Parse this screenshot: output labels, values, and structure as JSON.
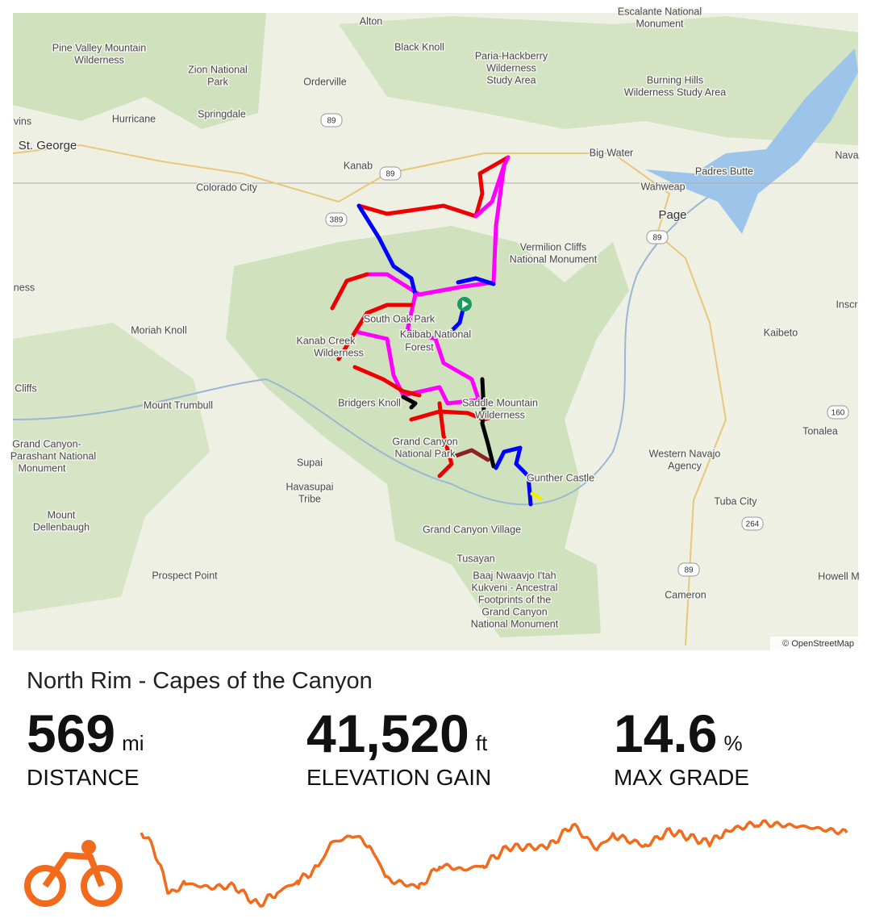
{
  "map": {
    "labels": [
      "Alton",
      "Black Knoll",
      "Pine Valley Mountain",
      "Wilderness",
      "Zion National",
      "Park",
      "Orderville",
      "Paria-Hackberry",
      "Wilderness",
      "Study Area",
      "Escalante National",
      "Monument",
      "Burning Hills",
      "Wilderness Study Area",
      "Hurricane",
      "Springdale",
      "St. George",
      "vins",
      "Kanab",
      "Big Water",
      "Nava",
      "Padres Butte",
      "Colorado City",
      "Wahweap",
      "Page",
      "Vermilion Cliffs",
      "National Monument",
      "ness",
      "Inscr",
      "South Oak Park",
      "Kaibab National",
      "Forest",
      "Moriah Knoll",
      "Kanab Creek",
      "Wilderness",
      "Kaibeto",
      "Cliffs",
      "Mount Trumbull",
      "Bridgers Knoll",
      "Saddle Mountain",
      "Wilderness",
      "Tonalea",
      "Grand Canyon-",
      "Parashant National",
      "Monument",
      "Grand Canyon",
      "National Park",
      "Western Navajo",
      "Agency",
      "Supai",
      "Gunther Castle",
      "Havasupai",
      "Tribe",
      "Mount",
      "Dellenbaugh",
      "Tuba City",
      "Grand Canyon Village",
      "Tusayan",
      "Prospect Point",
      "Howell M",
      "Baaj Nwaavjo I'tah",
      "Kukveni - Ancestral",
      "Footprints of the",
      "Grand Canyon",
      "National Monument",
      "Cameron"
    ],
    "road_shields": [
      "89",
      "89",
      "89",
      "89",
      "389",
      "160",
      "264"
    ],
    "attribution": "© OpenStreetMap"
  },
  "route": {
    "title": "North Rim - Capes of the Canyon",
    "stats": [
      {
        "value": "569",
        "unit": "mi",
        "label": "DISTANCE"
      },
      {
        "value": "41,520",
        "unit": "ft",
        "label": "ELEVATION GAIN"
      },
      {
        "value": "14.6",
        "unit": "%",
        "label": "MAX GRADE"
      }
    ]
  }
}
